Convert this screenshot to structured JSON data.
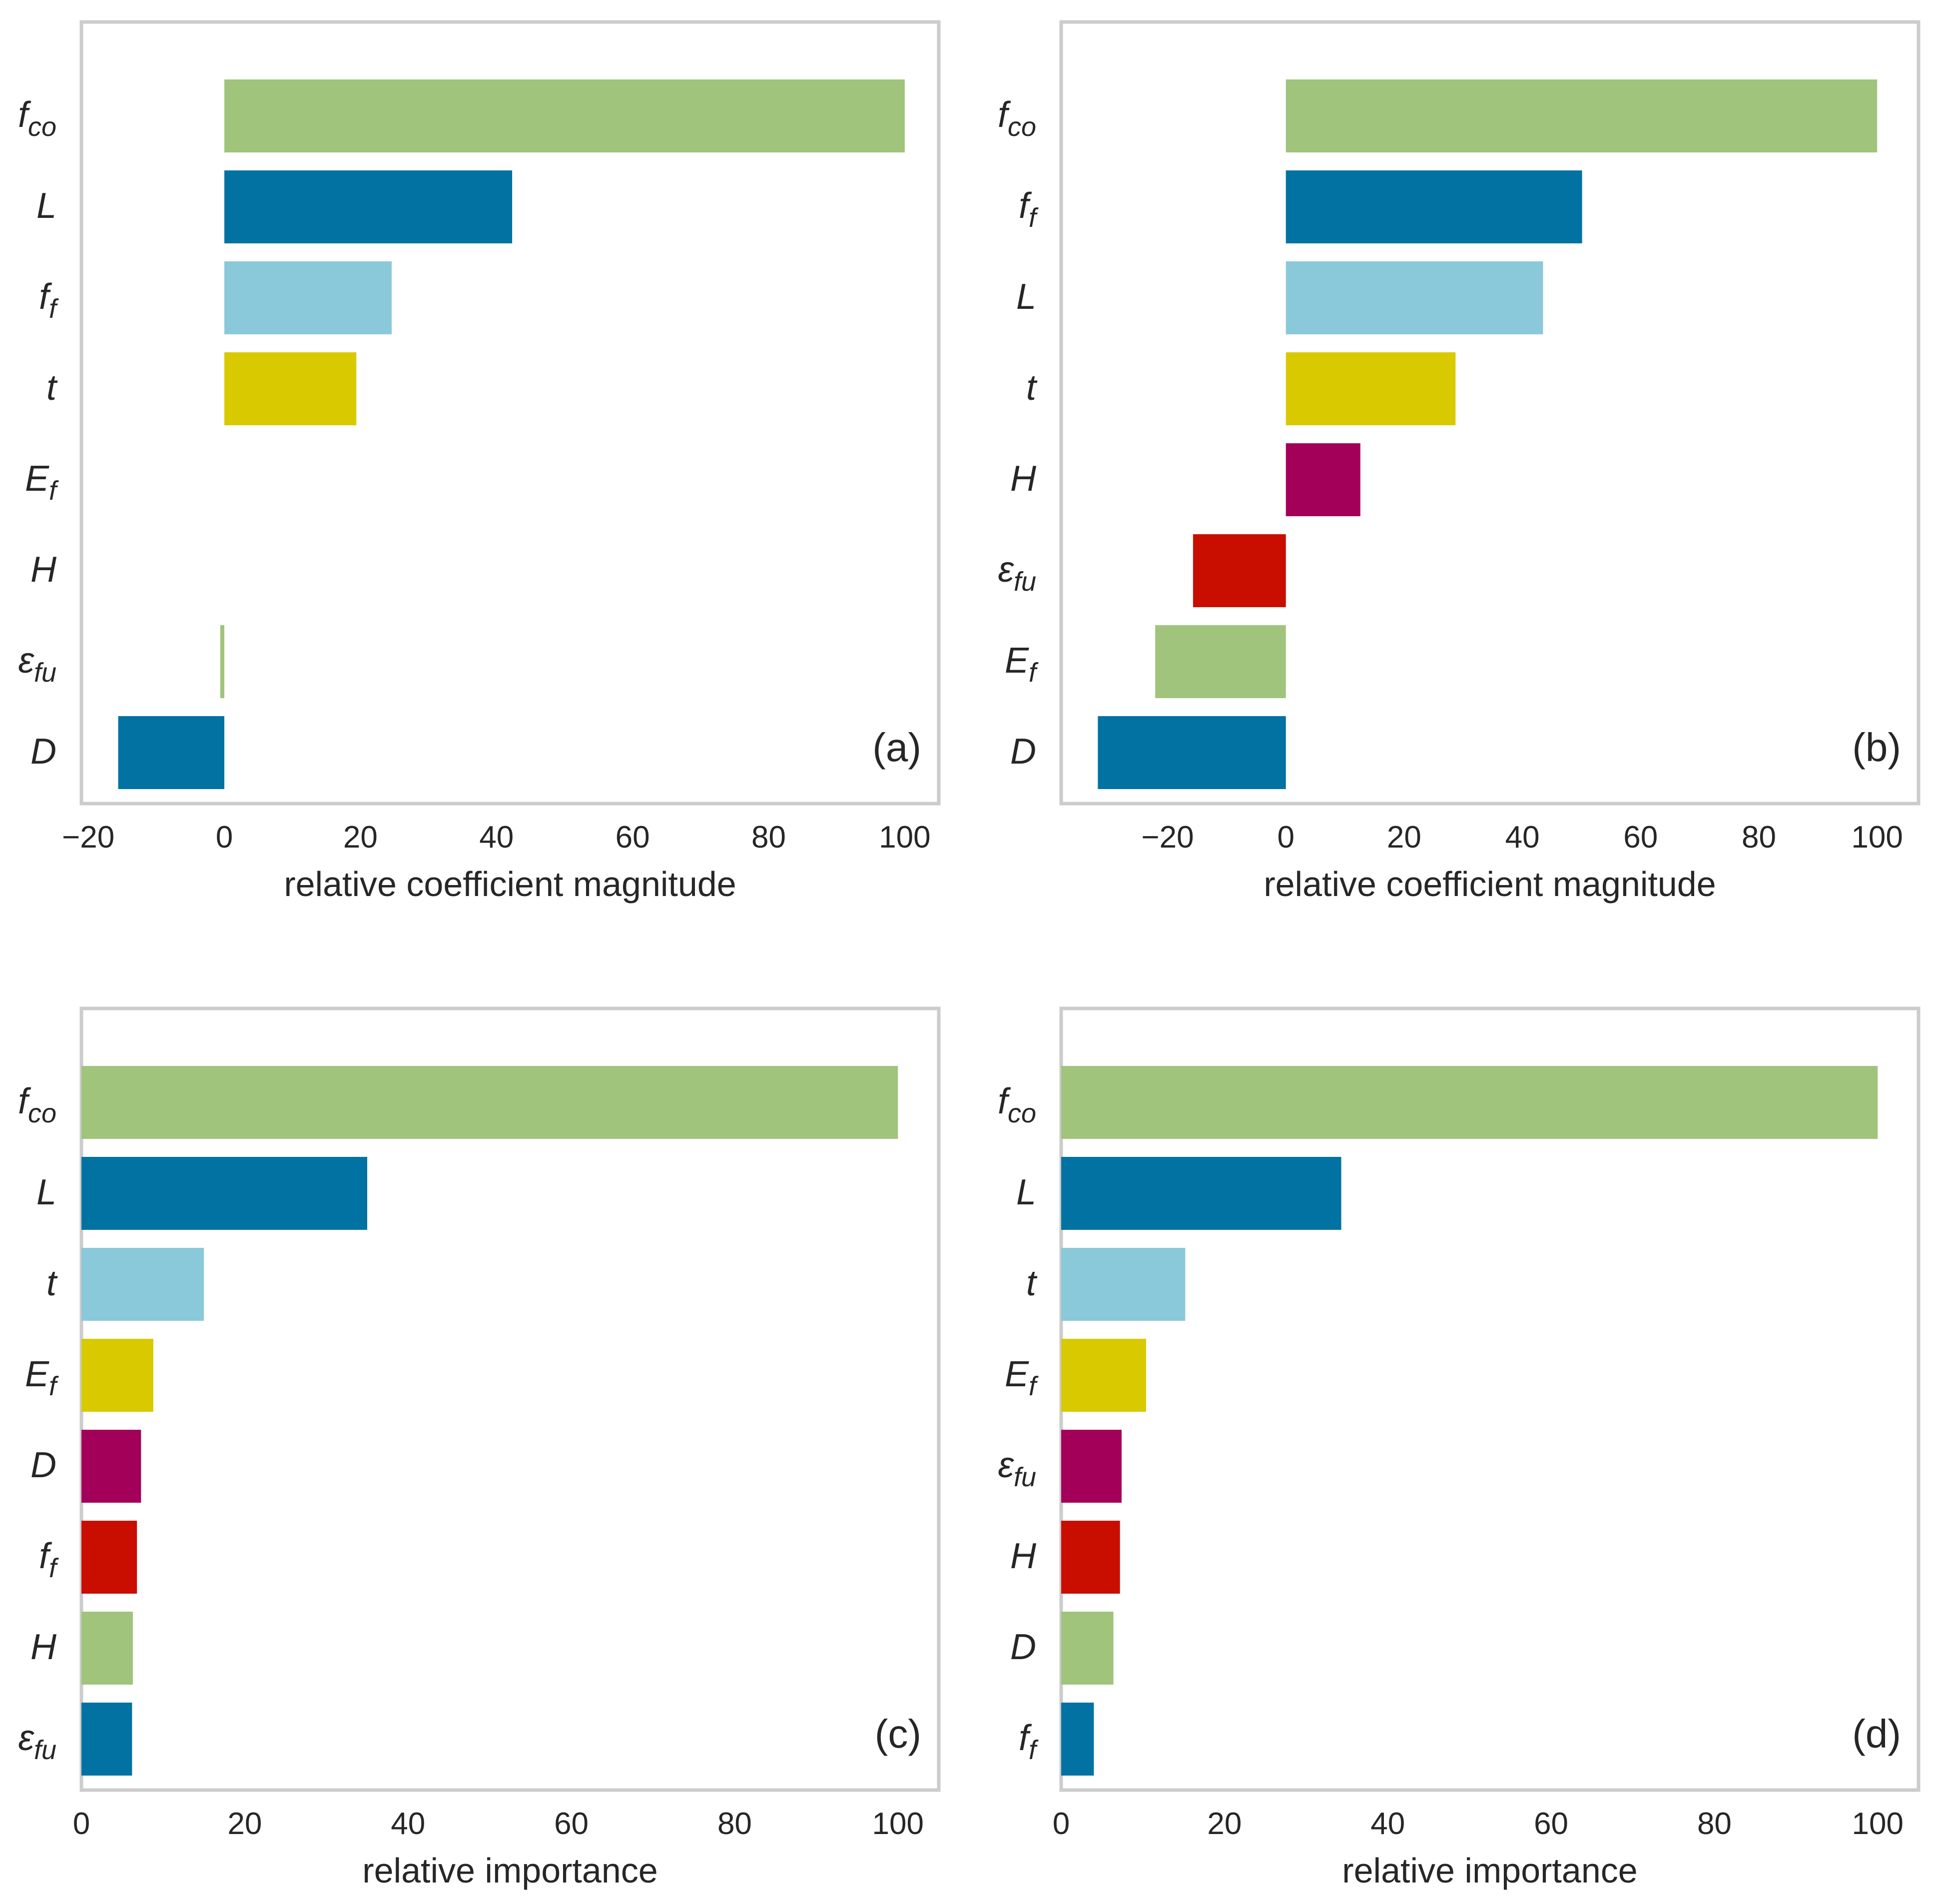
{
  "chart_data": [
    {
      "type": "bar",
      "orientation": "horizontal",
      "panel_label": "(a)",
      "xlabel": "relative coefficient magnitude",
      "xlim": [
        -21,
        105
      ],
      "xticks": [
        {
          "value": -20,
          "label": "−20"
        },
        {
          "value": 0,
          "label": "0"
        },
        {
          "value": 20,
          "label": "20"
        },
        {
          "value": 40,
          "label": "40"
        },
        {
          "value": 60,
          "label": "60"
        },
        {
          "value": 80,
          "label": "80"
        },
        {
          "value": 100,
          "label": "100"
        }
      ],
      "grid": false,
      "bars": [
        {
          "base": "f",
          "sub": "co",
          "value": 100,
          "color": "#a0c47b"
        },
        {
          "base": "L",
          "sub": "",
          "value": 42.3,
          "color": "#0272a2"
        },
        {
          "base": "f",
          "sub": "f",
          "value": 24.6,
          "color": "#8ac9d9"
        },
        {
          "base": "t",
          "sub": "",
          "value": 19.4,
          "color": "#d8c900"
        },
        {
          "base": "E",
          "sub": "f",
          "value": 0,
          "color": "#a30059"
        },
        {
          "base": "H",
          "sub": "",
          "value": 0,
          "color": "#c90e00"
        },
        {
          "base": "ε",
          "sub": "fu",
          "value": -0.6,
          "color": "#a0c47b"
        },
        {
          "base": "D",
          "sub": "",
          "value": -15.6,
          "color": "#0272a2"
        }
      ]
    },
    {
      "type": "bar",
      "orientation": "horizontal",
      "panel_label": "(b)",
      "xlabel": "relative coefficient magnitude",
      "xlim": [
        -38,
        107
      ],
      "xticks": [
        {
          "value": -20,
          "label": "−20"
        },
        {
          "value": 0,
          "label": "0"
        },
        {
          "value": 20,
          "label": "20"
        },
        {
          "value": 40,
          "label": "40"
        },
        {
          "value": 60,
          "label": "60"
        },
        {
          "value": 80,
          "label": "80"
        },
        {
          "value": 100,
          "label": "100"
        }
      ],
      "grid": false,
      "bars": [
        {
          "base": "f",
          "sub": "co",
          "value": 100,
          "color": "#a0c47b"
        },
        {
          "base": "f",
          "sub": "f",
          "value": 50.1,
          "color": "#0272a2"
        },
        {
          "base": "L",
          "sub": "",
          "value": 43.5,
          "color": "#8ac9d9"
        },
        {
          "base": "t",
          "sub": "",
          "value": 28.7,
          "color": "#d8c900"
        },
        {
          "base": "H",
          "sub": "",
          "value": 12.6,
          "color": "#a30059"
        },
        {
          "base": "ε",
          "sub": "fu",
          "value": -15.7,
          "color": "#c90e00"
        },
        {
          "base": "E",
          "sub": "f",
          "value": -22.1,
          "color": "#a0c47b"
        },
        {
          "base": "D",
          "sub": "",
          "value": -31.8,
          "color": "#0272a2"
        }
      ]
    },
    {
      "type": "bar",
      "orientation": "horizontal",
      "panel_label": "(c)",
      "xlabel": "relative importance",
      "xlim": [
        0,
        105
      ],
      "xticks": [
        {
          "value": 0,
          "label": "0"
        },
        {
          "value": 20,
          "label": "20"
        },
        {
          "value": 40,
          "label": "40"
        },
        {
          "value": 60,
          "label": "60"
        },
        {
          "value": 80,
          "label": "80"
        },
        {
          "value": 100,
          "label": "100"
        }
      ],
      "grid": false,
      "bars": [
        {
          "base": "f",
          "sub": "co",
          "value": 100,
          "color": "#a0c47b"
        },
        {
          "base": "L",
          "sub": "",
          "value": 35,
          "color": "#0272a2"
        },
        {
          "base": "t",
          "sub": "",
          "value": 15,
          "color": "#8ac9d9"
        },
        {
          "base": "E",
          "sub": "f",
          "value": 8.8,
          "color": "#d8c900"
        },
        {
          "base": "D",
          "sub": "",
          "value": 7.3,
          "color": "#a30059"
        },
        {
          "base": "f",
          "sub": "f",
          "value": 6.8,
          "color": "#c90e00"
        },
        {
          "base": "H",
          "sub": "",
          "value": 6.3,
          "color": "#a0c47b"
        },
        {
          "base": "ε",
          "sub": "fu",
          "value": 6.2,
          "color": "#0272a2"
        }
      ]
    },
    {
      "type": "bar",
      "orientation": "horizontal",
      "panel_label": "(d)",
      "xlabel": "relative importance",
      "xlim": [
        0,
        105
      ],
      "xticks": [
        {
          "value": 0,
          "label": "0"
        },
        {
          "value": 20,
          "label": "20"
        },
        {
          "value": 40,
          "label": "40"
        },
        {
          "value": 60,
          "label": "60"
        },
        {
          "value": 80,
          "label": "80"
        },
        {
          "value": 100,
          "label": "100"
        }
      ],
      "grid": false,
      "bars": [
        {
          "base": "f",
          "sub": "co",
          "value": 100,
          "color": "#a0c47b"
        },
        {
          "base": "L",
          "sub": "",
          "value": 34.3,
          "color": "#0272a2"
        },
        {
          "base": "t",
          "sub": "",
          "value": 15.2,
          "color": "#8ac9d9"
        },
        {
          "base": "E",
          "sub": "f",
          "value": 10.4,
          "color": "#d8c900"
        },
        {
          "base": "ε",
          "sub": "fu",
          "value": 7.4,
          "color": "#a30059"
        },
        {
          "base": "H",
          "sub": "",
          "value": 7.2,
          "color": "#c90e00"
        },
        {
          "base": "D",
          "sub": "",
          "value": 6.4,
          "color": "#a0c47b"
        },
        {
          "base": "f",
          "sub": "f",
          "value": 4,
          "color": "#0272a2"
        }
      ]
    }
  ]
}
